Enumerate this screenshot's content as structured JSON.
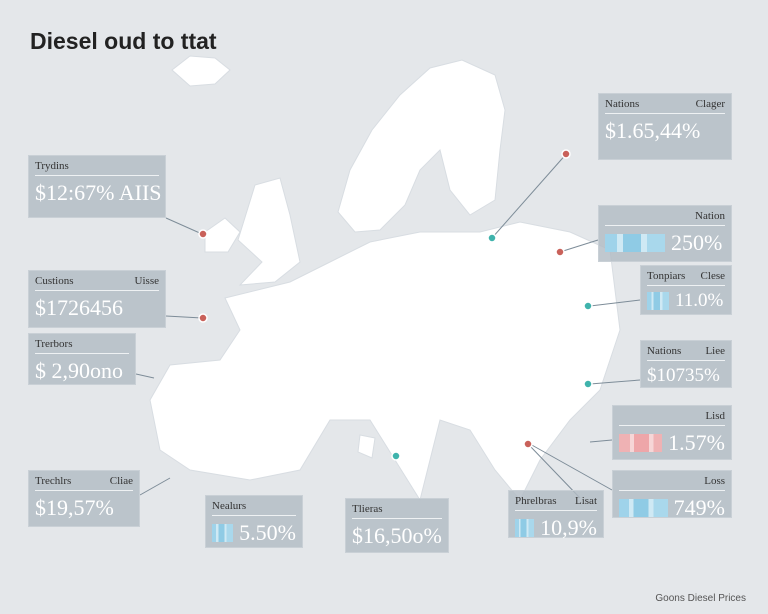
{
  "title": "Diesel oud to ttat",
  "footer": "Goons Diesel Prices",
  "callouts": [
    {
      "label": "Trydins",
      "value": "$12:67% AIIS"
    },
    {
      "label": "Custions",
      "label2": "Uisse",
      "value": "$1726456"
    },
    {
      "label": "Trerbors",
      "value": "$ 2,90ono"
    },
    {
      "label": "Trechlrs",
      "label2": "Cliae",
      "value": "$19,57%"
    },
    {
      "label": "Nealurs",
      "value": "5.50%"
    },
    {
      "label": "Tlieras",
      "value": "$16,50o%"
    },
    {
      "label": "Phrelbras",
      "label2": "Lisat",
      "value": "10,9%"
    },
    {
      "label2": "Loss",
      "value": "749%"
    },
    {
      "label2": "Lisd",
      "value": "1.57%"
    },
    {
      "label": "Nations",
      "label2": "Liee",
      "value": "$10735%"
    },
    {
      "label": "Tonpiars",
      "label2": "Clese",
      "value": "11.0%"
    },
    {
      "label2": "Nation",
      "value": "250%"
    },
    {
      "label": "Nations",
      "label2": "Clager",
      "value": "$1.65,44%"
    }
  ]
}
